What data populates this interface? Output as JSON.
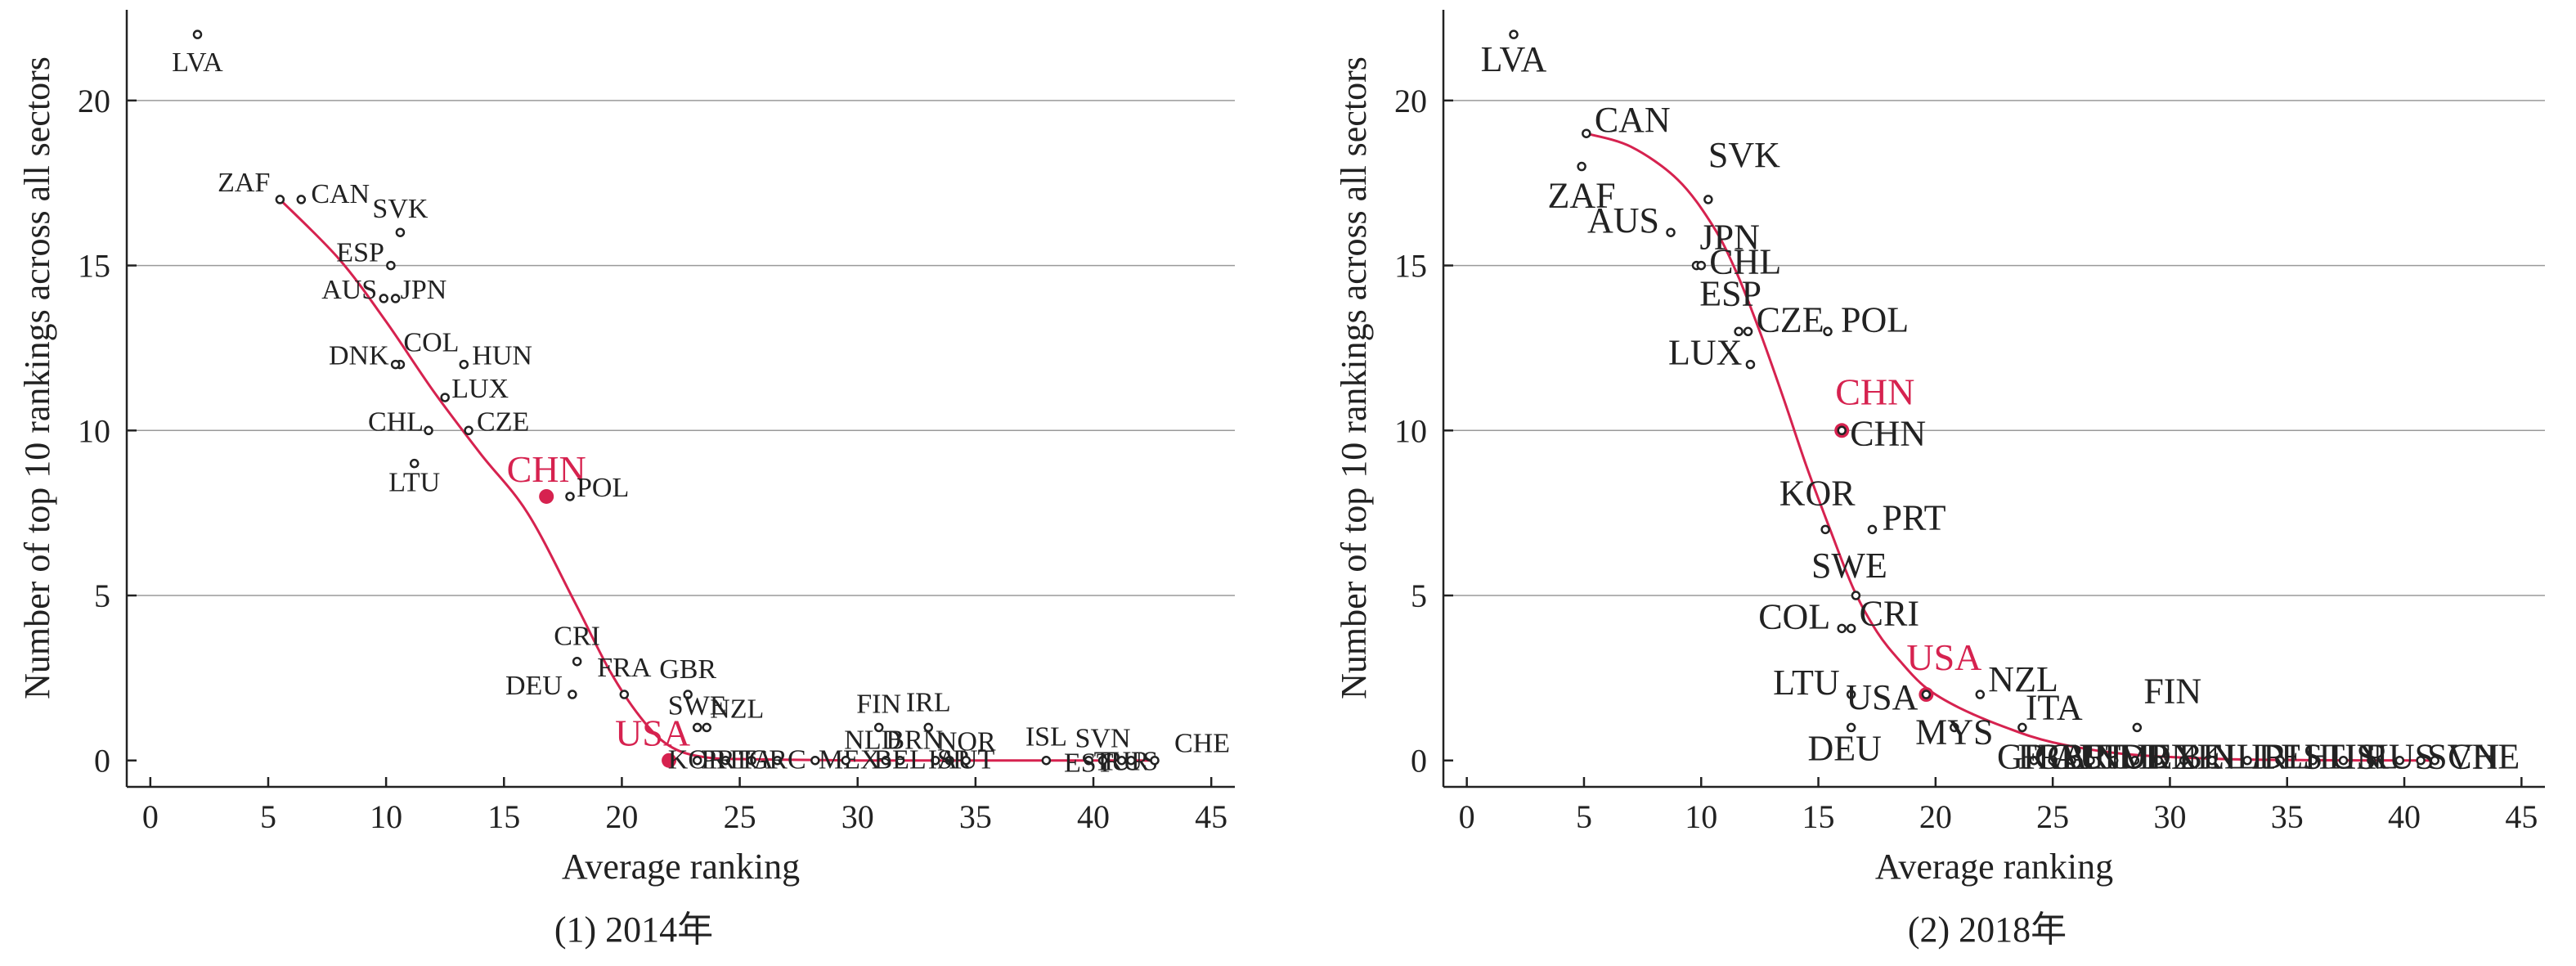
{
  "captions": [
    "(1) 2014年",
    "(2) 2018年"
  ],
  "highlight_color": "#d6224f",
  "chart_data": [
    {
      "type": "scatter",
      "title": "",
      "caption": "(1) 2014年",
      "xlabel": "Average ranking",
      "ylabel": "Number of top 10 rankings across all sectors",
      "xlim": [
        -1,
        46
      ],
      "ylim": [
        -0.8,
        22.5
      ],
      "xticks": [
        0,
        5,
        10,
        15,
        20,
        25,
        30,
        35,
        40,
        45
      ],
      "yticks": [
        0,
        5,
        10,
        15,
        20
      ],
      "grid": "horizontal",
      "highlight": "CHN",
      "points": [
        {
          "label": "LVA",
          "x": 2.0,
          "y": 22
        },
        {
          "label": "ZAF",
          "x": 5.5,
          "y": 17
        },
        {
          "label": "CAN",
          "x": 6.4,
          "y": 17
        },
        {
          "label": "SVK",
          "x": 10.6,
          "y": 16
        },
        {
          "label": "ESP",
          "x": 10.2,
          "y": 15
        },
        {
          "label": "AUS",
          "x": 9.9,
          "y": 14
        },
        {
          "label": "JPN",
          "x": 10.4,
          "y": 14
        },
        {
          "label": "COL",
          "x": 10.6,
          "y": 12
        },
        {
          "label": "DNK",
          "x": 10.4,
          "y": 12
        },
        {
          "label": "HUN",
          "x": 13.3,
          "y": 12
        },
        {
          "label": "LUX",
          "x": 12.5,
          "y": 11
        },
        {
          "label": "CHL",
          "x": 11.8,
          "y": 10
        },
        {
          "label": "CZE",
          "x": 13.5,
          "y": 10
        },
        {
          "label": "LTU",
          "x": 11.2,
          "y": 9
        },
        {
          "label": "CHN",
          "x": 16.8,
          "y": 8,
          "highlight": true
        },
        {
          "label": "POL",
          "x": 17.8,
          "y": 8
        },
        {
          "label": "CRI",
          "x": 18.1,
          "y": 3
        },
        {
          "label": "DEU",
          "x": 17.9,
          "y": 2
        },
        {
          "label": "FRA",
          "x": 20.1,
          "y": 2
        },
        {
          "label": "GBR",
          "x": 22.8,
          "y": 2
        },
        {
          "label": "SWE",
          "x": 23.2,
          "y": 1
        },
        {
          "label": "NZL",
          "x": 23.6,
          "y": 1
        },
        {
          "label": "USA",
          "x": 22.0,
          "y": 0,
          "highlight": true
        },
        {
          "label": "KOR",
          "x": 23.2,
          "y": 0
        },
        {
          "label": "PRT",
          "x": 24.4,
          "y": 0
        },
        {
          "label": "ITA",
          "x": 25.5,
          "y": 0
        },
        {
          "label": "GRC",
          "x": 26.6,
          "y": 0
        },
        {
          "label": "MEX",
          "x": 28.2,
          "y": 0
        },
        {
          "label": "FIN",
          "x": 30.9,
          "y": 1
        },
        {
          "label": "NLD",
          "x": 29.5,
          "y": 0
        },
        {
          "label": "IRL",
          "x": 33.0,
          "y": 1
        },
        {
          "label": "BRN",
          "x": 31.2,
          "y": 0
        },
        {
          "label": "BEL",
          "x": 31.8,
          "y": 0
        },
        {
          "label": "NOR",
          "x": 33.3,
          "y": 0
        },
        {
          "label": "ISR",
          "x": 33.9,
          "y": 0
        },
        {
          "label": "AUT",
          "x": 34.6,
          "y": 0
        },
        {
          "label": "ISL",
          "x": 38.0,
          "y": 0
        },
        {
          "label": "EST",
          "x": 39.8,
          "y": 0
        },
        {
          "label": "SVN",
          "x": 40.4,
          "y": 0
        },
        {
          "label": "TUR",
          "x": 41.2,
          "y": 0
        },
        {
          "label": "RUS",
          "x": 41.6,
          "y": 0
        },
        {
          "label": "CHE",
          "x": 42.6,
          "y": 0
        }
      ],
      "fit_line": [
        [
          5.5,
          17
        ],
        [
          8,
          15.2
        ],
        [
          10,
          13.3
        ],
        [
          12,
          11.2
        ],
        [
          14,
          9.3
        ],
        [
          16,
          7.5
        ],
        [
          18,
          4.8
        ],
        [
          19.5,
          2.7
        ],
        [
          20.8,
          1.3
        ],
        [
          22,
          0.45
        ],
        [
          23.5,
          0.1
        ],
        [
          26,
          0.03
        ],
        [
          30,
          0
        ],
        [
          35,
          0
        ],
        [
          40,
          0
        ],
        [
          42.6,
          0
        ]
      ]
    },
    {
      "type": "scatter",
      "title": "",
      "caption": "(2) 2018年",
      "xlabel": "Average ranking",
      "ylabel": "Number of top 10 rankings across all sectors",
      "xlim": [
        -1,
        46
      ],
      "ylim": [
        -0.8,
        22.5
      ],
      "xticks": [
        0,
        5,
        10,
        15,
        20,
        25,
        30,
        35,
        40,
        45
      ],
      "yticks": [
        0,
        5,
        10,
        15,
        20
      ],
      "grid": "horizontal",
      "highlight": "CHN",
      "points": [
        {
          "label": "LVA",
          "x": 2.0,
          "y": 22
        },
        {
          "label": "CAN",
          "x": 5.1,
          "y": 19
        },
        {
          "label": "ZAF",
          "x": 4.9,
          "y": 18
        },
        {
          "label": "SVK",
          "x": 10.3,
          "y": 17
        },
        {
          "label": "AUS",
          "x": 8.7,
          "y": 16
        },
        {
          "label": "JPN",
          "x": 9.8,
          "y": 15
        },
        {
          "label": "CHL",
          "x": 10.0,
          "y": 15
        },
        {
          "label": "ESP",
          "x": 11.6,
          "y": 13
        },
        {
          "label": "CZE",
          "x": 12.0,
          "y": 13
        },
        {
          "label": "POL",
          "x": 15.4,
          "y": 13
        },
        {
          "label": "LUX",
          "x": 12.1,
          "y": 12
        },
        {
          "label": "CHN",
          "x": 16.0,
          "y": 10,
          "highlight": true
        },
        {
          "label": "CHN",
          "x": 16.0,
          "y": 10
        },
        {
          "label": "KOR",
          "x": 15.3,
          "y": 7
        },
        {
          "label": "PRT",
          "x": 17.3,
          "y": 7
        },
        {
          "label": "SWE",
          "x": 16.6,
          "y": 5
        },
        {
          "label": "COL",
          "x": 16.0,
          "y": 4
        },
        {
          "label": "CRI",
          "x": 16.4,
          "y": 4
        },
        {
          "label": "LTU",
          "x": 16.4,
          "y": 2
        },
        {
          "label": "USA",
          "x": 19.6,
          "y": 2,
          "highlight": true
        },
        {
          "label": "USA",
          "x": 19.6,
          "y": 2
        },
        {
          "label": "NZL",
          "x": 21.9,
          "y": 2
        },
        {
          "label": "DEU",
          "x": 16.4,
          "y": 1
        },
        {
          "label": "MYS",
          "x": 20.8,
          "y": 1
        },
        {
          "label": "ITA",
          "x": 23.7,
          "y": 1
        },
        {
          "label": "FIN",
          "x": 28.6,
          "y": 1
        },
        {
          "label": "GRC",
          "x": 24.2,
          "y": 0
        },
        {
          "label": "FRA",
          "x": 25.0,
          "y": 0
        },
        {
          "label": "GBR",
          "x": 25.8,
          "y": 0
        },
        {
          "label": "AUT",
          "x": 26.6,
          "y": 0
        },
        {
          "label": "IND",
          "x": 27.6,
          "y": 0
        },
        {
          "label": "TUR",
          "x": 28.5,
          "y": 0
        },
        {
          "label": "MEX",
          "x": 29.5,
          "y": 0
        },
        {
          "label": "DNK",
          "x": 30.6,
          "y": 0
        },
        {
          "label": "BEL",
          "x": 31.8,
          "y": 0
        },
        {
          "label": "NLD",
          "x": 33.3,
          "y": 0
        },
        {
          "label": "IRL",
          "x": 34.7,
          "y": 0
        },
        {
          "label": "EST",
          "x": 36.1,
          "y": 0
        },
        {
          "label": "HUN",
          "x": 37.4,
          "y": 0
        },
        {
          "label": "ISL",
          "x": 38.6,
          "y": 0
        },
        {
          "label": "RUS",
          "x": 39.8,
          "y": 0
        },
        {
          "label": "SVN",
          "x": 40.7,
          "y": 0
        },
        {
          "label": "CHE",
          "x": 41.3,
          "y": 0
        }
      ],
      "fit_line": [
        [
          5.1,
          19
        ],
        [
          7,
          18.6
        ],
        [
          9,
          17.6
        ],
        [
          10.5,
          16.2
        ],
        [
          11.5,
          14.8
        ],
        [
          12.5,
          13.0
        ],
        [
          13.5,
          11.0
        ],
        [
          14.5,
          8.9
        ],
        [
          15.5,
          7.0
        ],
        [
          16.5,
          5.2
        ],
        [
          17.5,
          3.9
        ],
        [
          18.5,
          3.0
        ],
        [
          19.6,
          2.2
        ],
        [
          21,
          1.6
        ],
        [
          23,
          1.0
        ],
        [
          25,
          0.55
        ],
        [
          28,
          0.2
        ],
        [
          32,
          0.05
        ],
        [
          36,
          0.01
        ],
        [
          41.3,
          0
        ]
      ]
    }
  ]
}
